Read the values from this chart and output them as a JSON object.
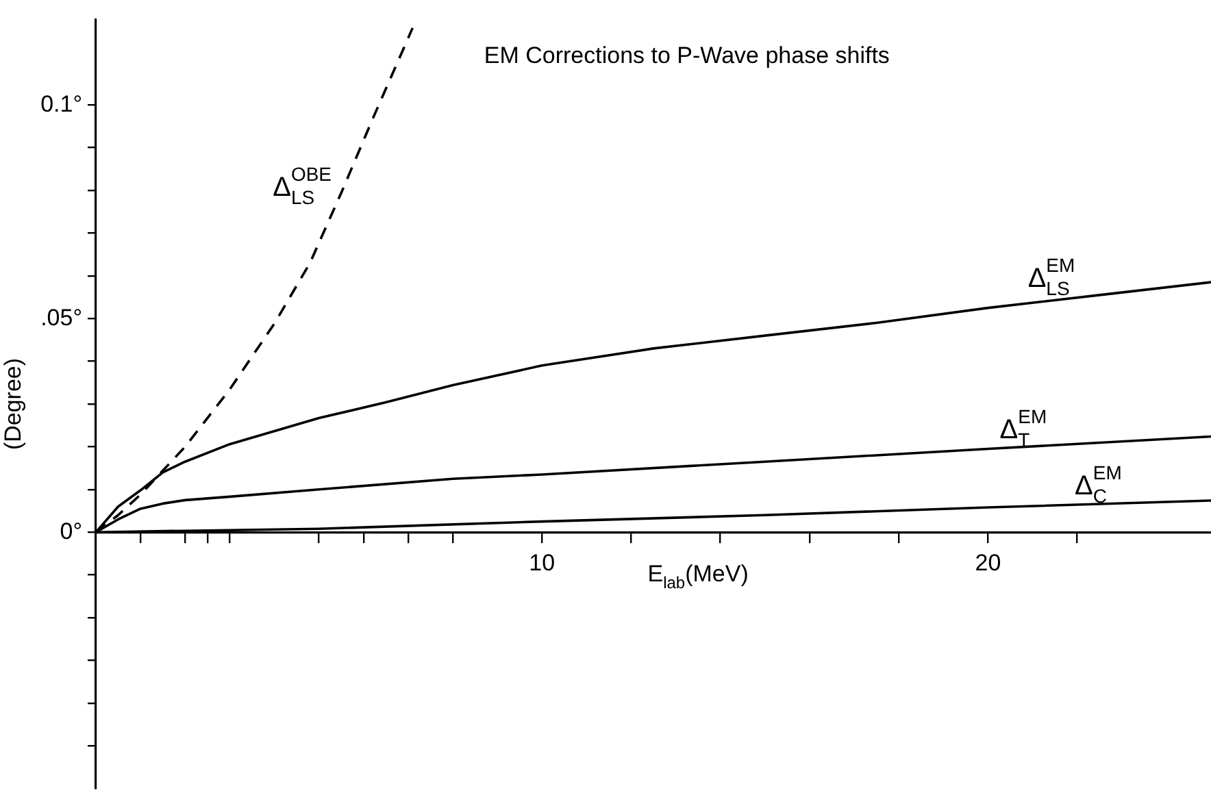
{
  "chart_data": {
    "type": "line",
    "title": "EM Corrections to P-Wave phase shifts",
    "xlabel": "E$_{lab}$(MeV)",
    "ylabel": "(Degree)",
    "xlim": [
      0,
      25
    ],
    "ylim": [
      -0.06,
      0.12
    ],
    "xticks": [
      {
        "value": 1,
        "label": null
      },
      {
        "value": 2,
        "label": null
      },
      {
        "value": 2.5,
        "label": null
      },
      {
        "value": 3,
        "label": null
      },
      {
        "value": 5,
        "label": null
      },
      {
        "value": 6,
        "label": null
      },
      {
        "value": 7,
        "label": null
      },
      {
        "value": 8,
        "label": null
      },
      10,
      {
        "value": 12,
        "label": null
      },
      {
        "value": 14,
        "label": null
      },
      {
        "value": 16,
        "label": null
      },
      {
        "value": 18,
        "label": null
      },
      20,
      {
        "value": 22,
        "label": null
      }
    ],
    "yticks": [
      {
        "value": -0.05,
        "label": null
      },
      {
        "value": -0.04,
        "label": null
      },
      {
        "value": -0.03,
        "label": null
      },
      {
        "value": -0.02,
        "label": null
      },
      {
        "value": -0.01,
        "label": null
      },
      {
        "value": 0,
        "label": "0°"
      },
      {
        "value": 0.01,
        "label": null
      },
      {
        "value": 0.02,
        "label": null
      },
      {
        "value": 0.03,
        "label": null
      },
      {
        "value": 0.04,
        "label": null
      },
      {
        "value": 0.05,
        "label": ".05°"
      },
      {
        "value": 0.06,
        "label": null
      },
      {
        "value": 0.07,
        "label": null
      },
      {
        "value": 0.08,
        "label": null
      },
      {
        "value": 0.09,
        "label": null
      },
      {
        "value": 0.1,
        "label": "0.1°"
      }
    ],
    "grid": false,
    "legend": false,
    "marker": "none",
    "series": [
      {
        "name": "Δ$^{OBE}$$_{LS}$",
        "color": "#000000",
        "line_style": "dashed",
        "x": [
          0,
          0.5,
          1,
          1.5,
          2,
          3,
          4,
          4.8,
          5.5,
          6.2,
          7.1
        ],
        "values": [
          0,
          0.004,
          0.0088,
          0.0144,
          0.02,
          0.0334,
          0.0488,
          0.063,
          0.0794,
          0.0966,
          0.118
        ]
      },
      {
        "name": "Δ$^{EM}$$_{LS}$",
        "color": "#000000",
        "line_style": "solid",
        "x": [
          0,
          0.5,
          1,
          1.5,
          2,
          3,
          5,
          6.5,
          8,
          10,
          12.5,
          15,
          17.5,
          20,
          22.5,
          25
        ],
        "values": [
          0,
          0.006,
          0.0098,
          0.014,
          0.0165,
          0.0206,
          0.0267,
          0.0304,
          0.0344,
          0.039,
          0.043,
          0.046,
          0.049,
          0.0525,
          0.0555,
          0.0585
        ]
      },
      {
        "name": "Δ$^{EM}$$_{T}$",
        "color": "#000000",
        "line_style": "solid",
        "x": [
          0,
          0.5,
          1,
          1.5,
          2,
          3,
          5,
          8,
          10,
          15,
          20,
          25
        ],
        "values": [
          0,
          0.003,
          0.0055,
          0.0067,
          0.0075,
          0.0083,
          0.01,
          0.0125,
          0.0135,
          0.0165,
          0.0195,
          0.0224
        ]
      },
      {
        "name": "Δ$^{EM}$$_{C}$",
        "color": "#000000",
        "line_style": "solid",
        "x": [
          0,
          5,
          10,
          15,
          20,
          25
        ],
        "values": [
          0,
          0.0008,
          0.0025,
          0.004,
          0.0058,
          0.0074
        ]
      }
    ]
  }
}
